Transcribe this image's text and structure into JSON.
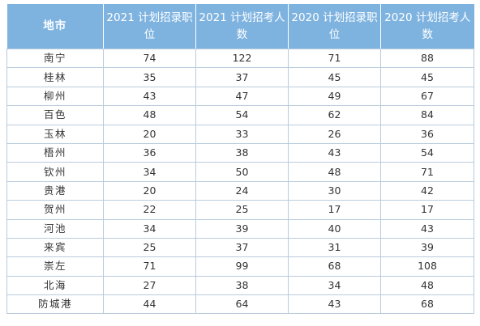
{
  "table": {
    "headers": [
      "地市",
      "2021 计划招录职位",
      "2021 计划招考人数",
      "2020 计划招录职位",
      "2020 计划招考人数"
    ],
    "rows": [
      [
        "南宁",
        "74",
        "122",
        "71",
        "88"
      ],
      [
        "桂林",
        "35",
        "37",
        "45",
        "45"
      ],
      [
        "柳州",
        "43",
        "47",
        "49",
        "67"
      ],
      [
        "百色",
        "48",
        "54",
        "62",
        "84"
      ],
      [
        "玉林",
        "20",
        "33",
        "26",
        "36"
      ],
      [
        "梧州",
        "36",
        "38",
        "43",
        "54"
      ],
      [
        "钦州",
        "34",
        "50",
        "48",
        "71"
      ],
      [
        "贵港",
        "20",
        "24",
        "30",
        "42"
      ],
      [
        "贺州",
        "22",
        "25",
        "17",
        "17"
      ],
      [
        "河池",
        "34",
        "39",
        "40",
        "43"
      ],
      [
        "来宾",
        "25",
        "37",
        "31",
        "39"
      ],
      [
        "崇左",
        "71",
        "99",
        "68",
        "108"
      ],
      [
        "北海",
        "27",
        "38",
        "34",
        "48"
      ],
      [
        "防城港",
        "44",
        "64",
        "43",
        "68"
      ]
    ]
  },
  "colors": {
    "header_background": "#7eb3e0",
    "header_text": "#ffffff",
    "grid_line": "#b9cbdc",
    "cell_text": "#333333"
  }
}
